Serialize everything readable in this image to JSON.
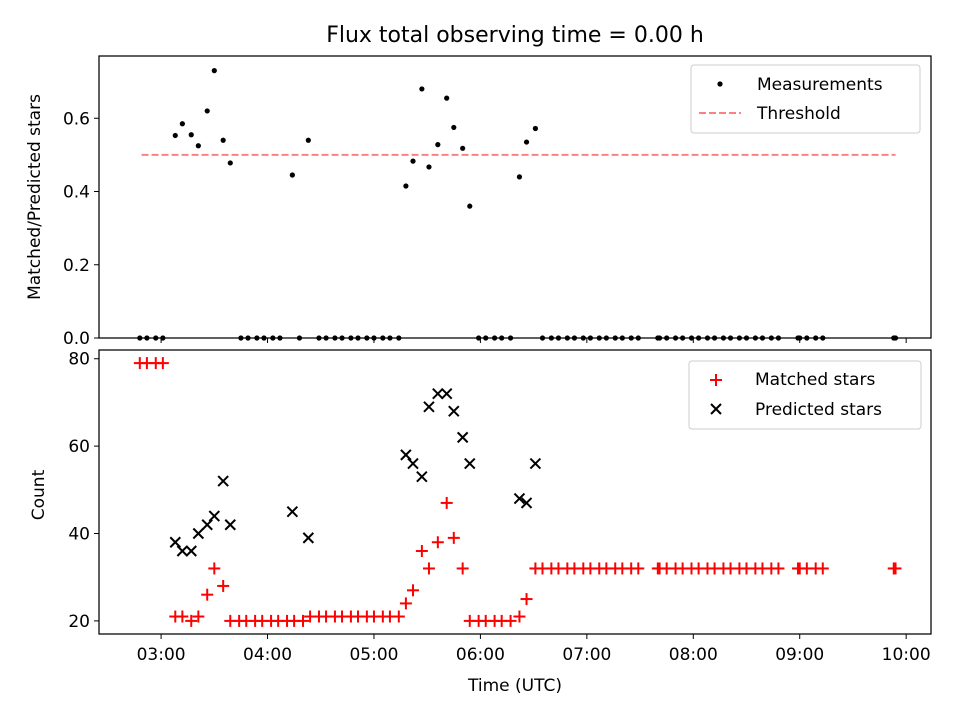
{
  "chart_data": [
    {
      "type": "scatter",
      "title": "Flux total observing time = 0.00 h",
      "ylabel": "Matched/Predicted stars",
      "xlim": [
        "02:25",
        "10:14"
      ],
      "ylim": [
        0,
        0.77
      ],
      "yticks": [
        0.0,
        0.2,
        0.4,
        0.6
      ],
      "ytick_labels": [
        "0.0",
        "0.2",
        "0.4",
        "0.6"
      ],
      "legend": {
        "position": "top-right",
        "entries": [
          "Measurements",
          "Threshold"
        ]
      },
      "threshold": {
        "name": "Threshold",
        "value": 0.5,
        "x_start": "02:49",
        "x_end": "09:54",
        "color": "#ff8080"
      },
      "series": [
        {
          "name": "Measurements",
          "marker": "dot",
          "color": "#000000",
          "points": [
            [
              "02:48",
              0
            ],
            [
              "02:52",
              0
            ],
            [
              "02:57",
              0
            ],
            [
              "03:01",
              0
            ],
            [
              "03:08",
              0.553
            ],
            [
              "03:12",
              0.585
            ],
            [
              "03:17",
              0.555
            ],
            [
              "03:21",
              0.525
            ],
            [
              "03:26",
              0.62
            ],
            [
              "03:30",
              0.73
            ],
            [
              "03:35",
              0.54
            ],
            [
              "03:39",
              0.478
            ],
            [
              "03:45",
              0
            ],
            [
              "03:49",
              0
            ],
            [
              "03:54",
              0
            ],
            [
              "03:58",
              0
            ],
            [
              "04:03",
              0
            ],
            [
              "04:07",
              0
            ],
            [
              "04:14",
              0.445
            ],
            [
              "04:18",
              0
            ],
            [
              "04:23",
              0.54
            ],
            [
              "04:29",
              0
            ],
            [
              "04:33",
              0
            ],
            [
              "04:38",
              0
            ],
            [
              "04:42",
              0
            ],
            [
              "04:47",
              0
            ],
            [
              "04:51",
              0
            ],
            [
              "04:56",
              0
            ],
            [
              "05:00",
              0
            ],
            [
              "05:05",
              0
            ],
            [
              "05:09",
              0
            ],
            [
              "05:14",
              0
            ],
            [
              "05:18",
              0.415
            ],
            [
              "05:22",
              0.483
            ],
            [
              "05:27",
              0.68
            ],
            [
              "05:31",
              0.467
            ],
            [
              "05:36",
              0.528
            ],
            [
              "05:41",
              0.655
            ],
            [
              "05:45",
              0.575
            ],
            [
              "05:50",
              0.518
            ],
            [
              "05:54",
              0.36
            ],
            [
              "05:59",
              0
            ],
            [
              "06:03",
              0
            ],
            [
              "06:08",
              0
            ],
            [
              "06:12",
              0
            ],
            [
              "06:17",
              0
            ],
            [
              "06:22",
              0.44
            ],
            [
              "06:26",
              0.535
            ],
            [
              "06:31",
              0.572
            ],
            [
              "06:35",
              0
            ],
            [
              "06:40",
              0
            ],
            [
              "06:44",
              0
            ],
            [
              "06:49",
              0
            ],
            [
              "06:53",
              0
            ],
            [
              "06:58",
              0
            ],
            [
              "07:02",
              0
            ],
            [
              "07:07",
              0
            ],
            [
              "07:11",
              0
            ],
            [
              "07:16",
              0
            ],
            [
              "07:20",
              0
            ],
            [
              "07:25",
              0
            ],
            [
              "07:29",
              0
            ],
            [
              "07:40",
              0
            ],
            [
              "07:41",
              0
            ],
            [
              "07:45",
              0
            ],
            [
              "07:50",
              0
            ],
            [
              "07:54",
              0
            ],
            [
              "07:59",
              0
            ],
            [
              "08:03",
              0
            ],
            [
              "08:08",
              0
            ],
            [
              "08:12",
              0
            ],
            [
              "08:17",
              0
            ],
            [
              "08:21",
              0
            ],
            [
              "08:26",
              0
            ],
            [
              "08:30",
              0
            ],
            [
              "08:35",
              0
            ],
            [
              "08:39",
              0
            ],
            [
              "08:44",
              0
            ],
            [
              "08:48",
              0
            ],
            [
              "08:59",
              0
            ],
            [
              "09:00",
              0
            ],
            [
              "09:04",
              0
            ],
            [
              "09:09",
              0
            ],
            [
              "09:13",
              0
            ],
            [
              "09:53",
              0
            ],
            [
              "09:54",
              0
            ]
          ]
        }
      ]
    },
    {
      "type": "scatter",
      "xlabel": "Time (UTC)",
      "ylabel": "Count",
      "xlim": [
        "02:25",
        "10:14"
      ],
      "ylim": [
        17,
        82
      ],
      "xticks": [
        "03:00",
        "04:00",
        "05:00",
        "06:00",
        "07:00",
        "08:00",
        "09:00",
        "10:00"
      ],
      "yticks": [
        20,
        40,
        60,
        80
      ],
      "ytick_labels": [
        "20",
        "40",
        "60",
        "80"
      ],
      "legend": {
        "position": "top-right",
        "entries": [
          "Matched stars",
          "Predicted stars"
        ]
      },
      "series": [
        {
          "name": "Matched stars",
          "marker": "plus",
          "color": "#ff0000",
          "points": [
            [
              "02:48",
              79
            ],
            [
              "02:52",
              79
            ],
            [
              "02:57",
              79
            ],
            [
              "03:01",
              79
            ],
            [
              "03:08",
              21
            ],
            [
              "03:12",
              21
            ],
            [
              "03:17",
              20
            ],
            [
              "03:21",
              21
            ],
            [
              "03:26",
              26
            ],
            [
              "03:30",
              32
            ],
            [
              "03:35",
              28
            ],
            [
              "03:39",
              20
            ],
            [
              "03:44",
              20
            ],
            [
              "03:48",
              20
            ],
            [
              "03:53",
              20
            ],
            [
              "03:57",
              20
            ],
            [
              "04:02",
              20
            ],
            [
              "04:06",
              20
            ],
            [
              "04:11",
              20
            ],
            [
              "04:15",
              20
            ],
            [
              "04:20",
              20
            ],
            [
              "04:24",
              21
            ],
            [
              "04:29",
              21
            ],
            [
              "04:33",
              21
            ],
            [
              "04:38",
              21
            ],
            [
              "04:42",
              21
            ],
            [
              "04:47",
              21
            ],
            [
              "04:51",
              21
            ],
            [
              "04:56",
              21
            ],
            [
              "05:00",
              21
            ],
            [
              "05:05",
              21
            ],
            [
              "05:09",
              21
            ],
            [
              "05:14",
              21
            ],
            [
              "05:18",
              24
            ],
            [
              "05:22",
              27
            ],
            [
              "05:27",
              36
            ],
            [
              "05:31",
              32
            ],
            [
              "05:36",
              38
            ],
            [
              "05:41",
              47
            ],
            [
              "05:45",
              39
            ],
            [
              "05:50",
              32
            ],
            [
              "05:54",
              20
            ],
            [
              "05:59",
              20
            ],
            [
              "06:03",
              20
            ],
            [
              "06:08",
              20
            ],
            [
              "06:12",
              20
            ],
            [
              "06:17",
              20
            ],
            [
              "06:22",
              21
            ],
            [
              "06:26",
              25
            ],
            [
              "06:31",
              32
            ],
            [
              "06:35",
              32
            ],
            [
              "06:40",
              32
            ],
            [
              "06:44",
              32
            ],
            [
              "06:49",
              32
            ],
            [
              "06:53",
              32
            ],
            [
              "06:58",
              32
            ],
            [
              "07:02",
              32
            ],
            [
              "07:07",
              32
            ],
            [
              "07:11",
              32
            ],
            [
              "07:16",
              32
            ],
            [
              "07:20",
              32
            ],
            [
              "07:25",
              32
            ],
            [
              "07:29",
              32
            ],
            [
              "07:40",
              32
            ],
            [
              "07:41",
              32
            ],
            [
              "07:45",
              32
            ],
            [
              "07:50",
              32
            ],
            [
              "07:54",
              32
            ],
            [
              "07:59",
              32
            ],
            [
              "08:03",
              32
            ],
            [
              "08:08",
              32
            ],
            [
              "08:12",
              32
            ],
            [
              "08:17",
              32
            ],
            [
              "08:21",
              32
            ],
            [
              "08:26",
              32
            ],
            [
              "08:30",
              32
            ],
            [
              "08:35",
              32
            ],
            [
              "08:39",
              32
            ],
            [
              "08:44",
              32
            ],
            [
              "08:48",
              32
            ],
            [
              "08:59",
              32
            ],
            [
              "09:00",
              32
            ],
            [
              "09:04",
              32
            ],
            [
              "09:09",
              32
            ],
            [
              "09:13",
              32
            ],
            [
              "09:53",
              32
            ],
            [
              "09:54",
              32
            ]
          ]
        },
        {
          "name": "Predicted stars",
          "marker": "x",
          "color": "#000000",
          "points": [
            [
              "03:08",
              38
            ],
            [
              "03:12",
              36
            ],
            [
              "03:17",
              36
            ],
            [
              "03:21",
              40
            ],
            [
              "03:26",
              42
            ],
            [
              "03:30",
              44
            ],
            [
              "03:35",
              52
            ],
            [
              "03:39",
              42
            ],
            [
              "04:14",
              45
            ],
            [
              "04:23",
              39
            ],
            [
              "05:18",
              58
            ],
            [
              "05:22",
              56
            ],
            [
              "05:27",
              53
            ],
            [
              "05:31",
              69
            ],
            [
              "05:36",
              72
            ],
            [
              "05:41",
              72
            ],
            [
              "05:45",
              68
            ],
            [
              "05:50",
              62
            ],
            [
              "05:54",
              56
            ],
            [
              "06:22",
              48
            ],
            [
              "06:26",
              47
            ],
            [
              "06:31",
              56
            ]
          ]
        }
      ]
    }
  ]
}
